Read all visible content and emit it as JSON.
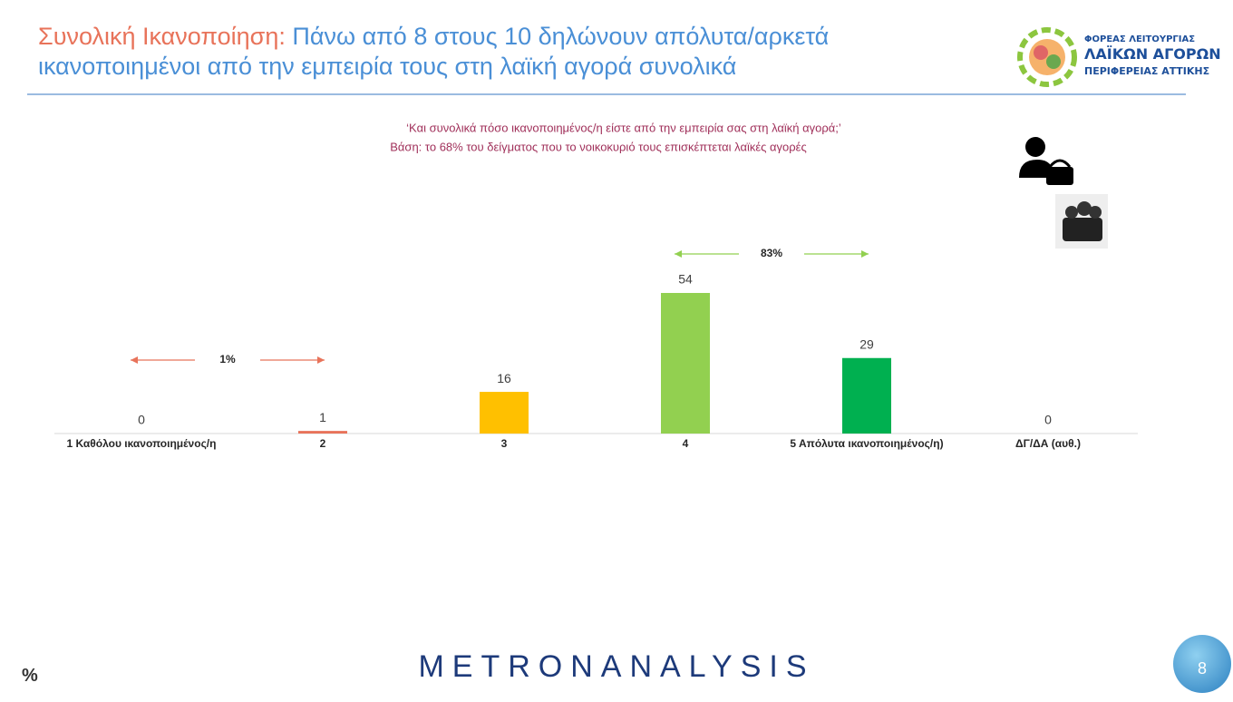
{
  "header": {
    "title_lead": "Συνολική Ικανοποίηση:",
    "title": "Πάνω από 8 στους 10 δηλώνουν απόλυτα/αρκετά ικανοποιημένοι από την εμπειρία τους στη λαϊκή αγορά συνολικά",
    "logo": [
      "ΦΟΡΕΑΣ ΛΕΙΤΟΥΡΓΙΑΣ",
      "ΛΑΪΚΩΝ ΑΓΟΡΩΝ",
      "ΠΕΡΙΦΕΡΕΙΑΣ ΑΤΤΙΚΗΣ"
    ]
  },
  "chart_data": {
    "type": "bar",
    "subtitle": [
      "‘Και συνολικά πόσο ικανοποιημένος/η είστε από την εμπειρία σας στη λαϊκή αγορά;’",
      "Βάση: το 68% του δείγματος που το νοικοκυριό τους επισκέπτεται λαϊκές αγορές"
    ],
    "categories": [
      "1  Καθόλου ικανοποιημένος/η",
      "2",
      "3",
      "4",
      "5 Απόλυτα ικανοποιημένος/η)",
      "ΔΓ/ΔΑ (αυθ.)"
    ],
    "values": [
      0,
      1,
      16,
      54,
      29,
      0
    ],
    "colors": [
      "#f4a582",
      "#e8735a",
      "#ffc000",
      "#92d050",
      "#00b050",
      "#bfbfbf"
    ],
    "annotations": [
      {
        "text": "1%",
        "color": "#e8735a"
      },
      {
        "text": "83%",
        "color": "#92d050"
      }
    ]
  },
  "footer": {
    "unit": "%",
    "brand": "METRONANALYSIS",
    "page": "8"
  }
}
